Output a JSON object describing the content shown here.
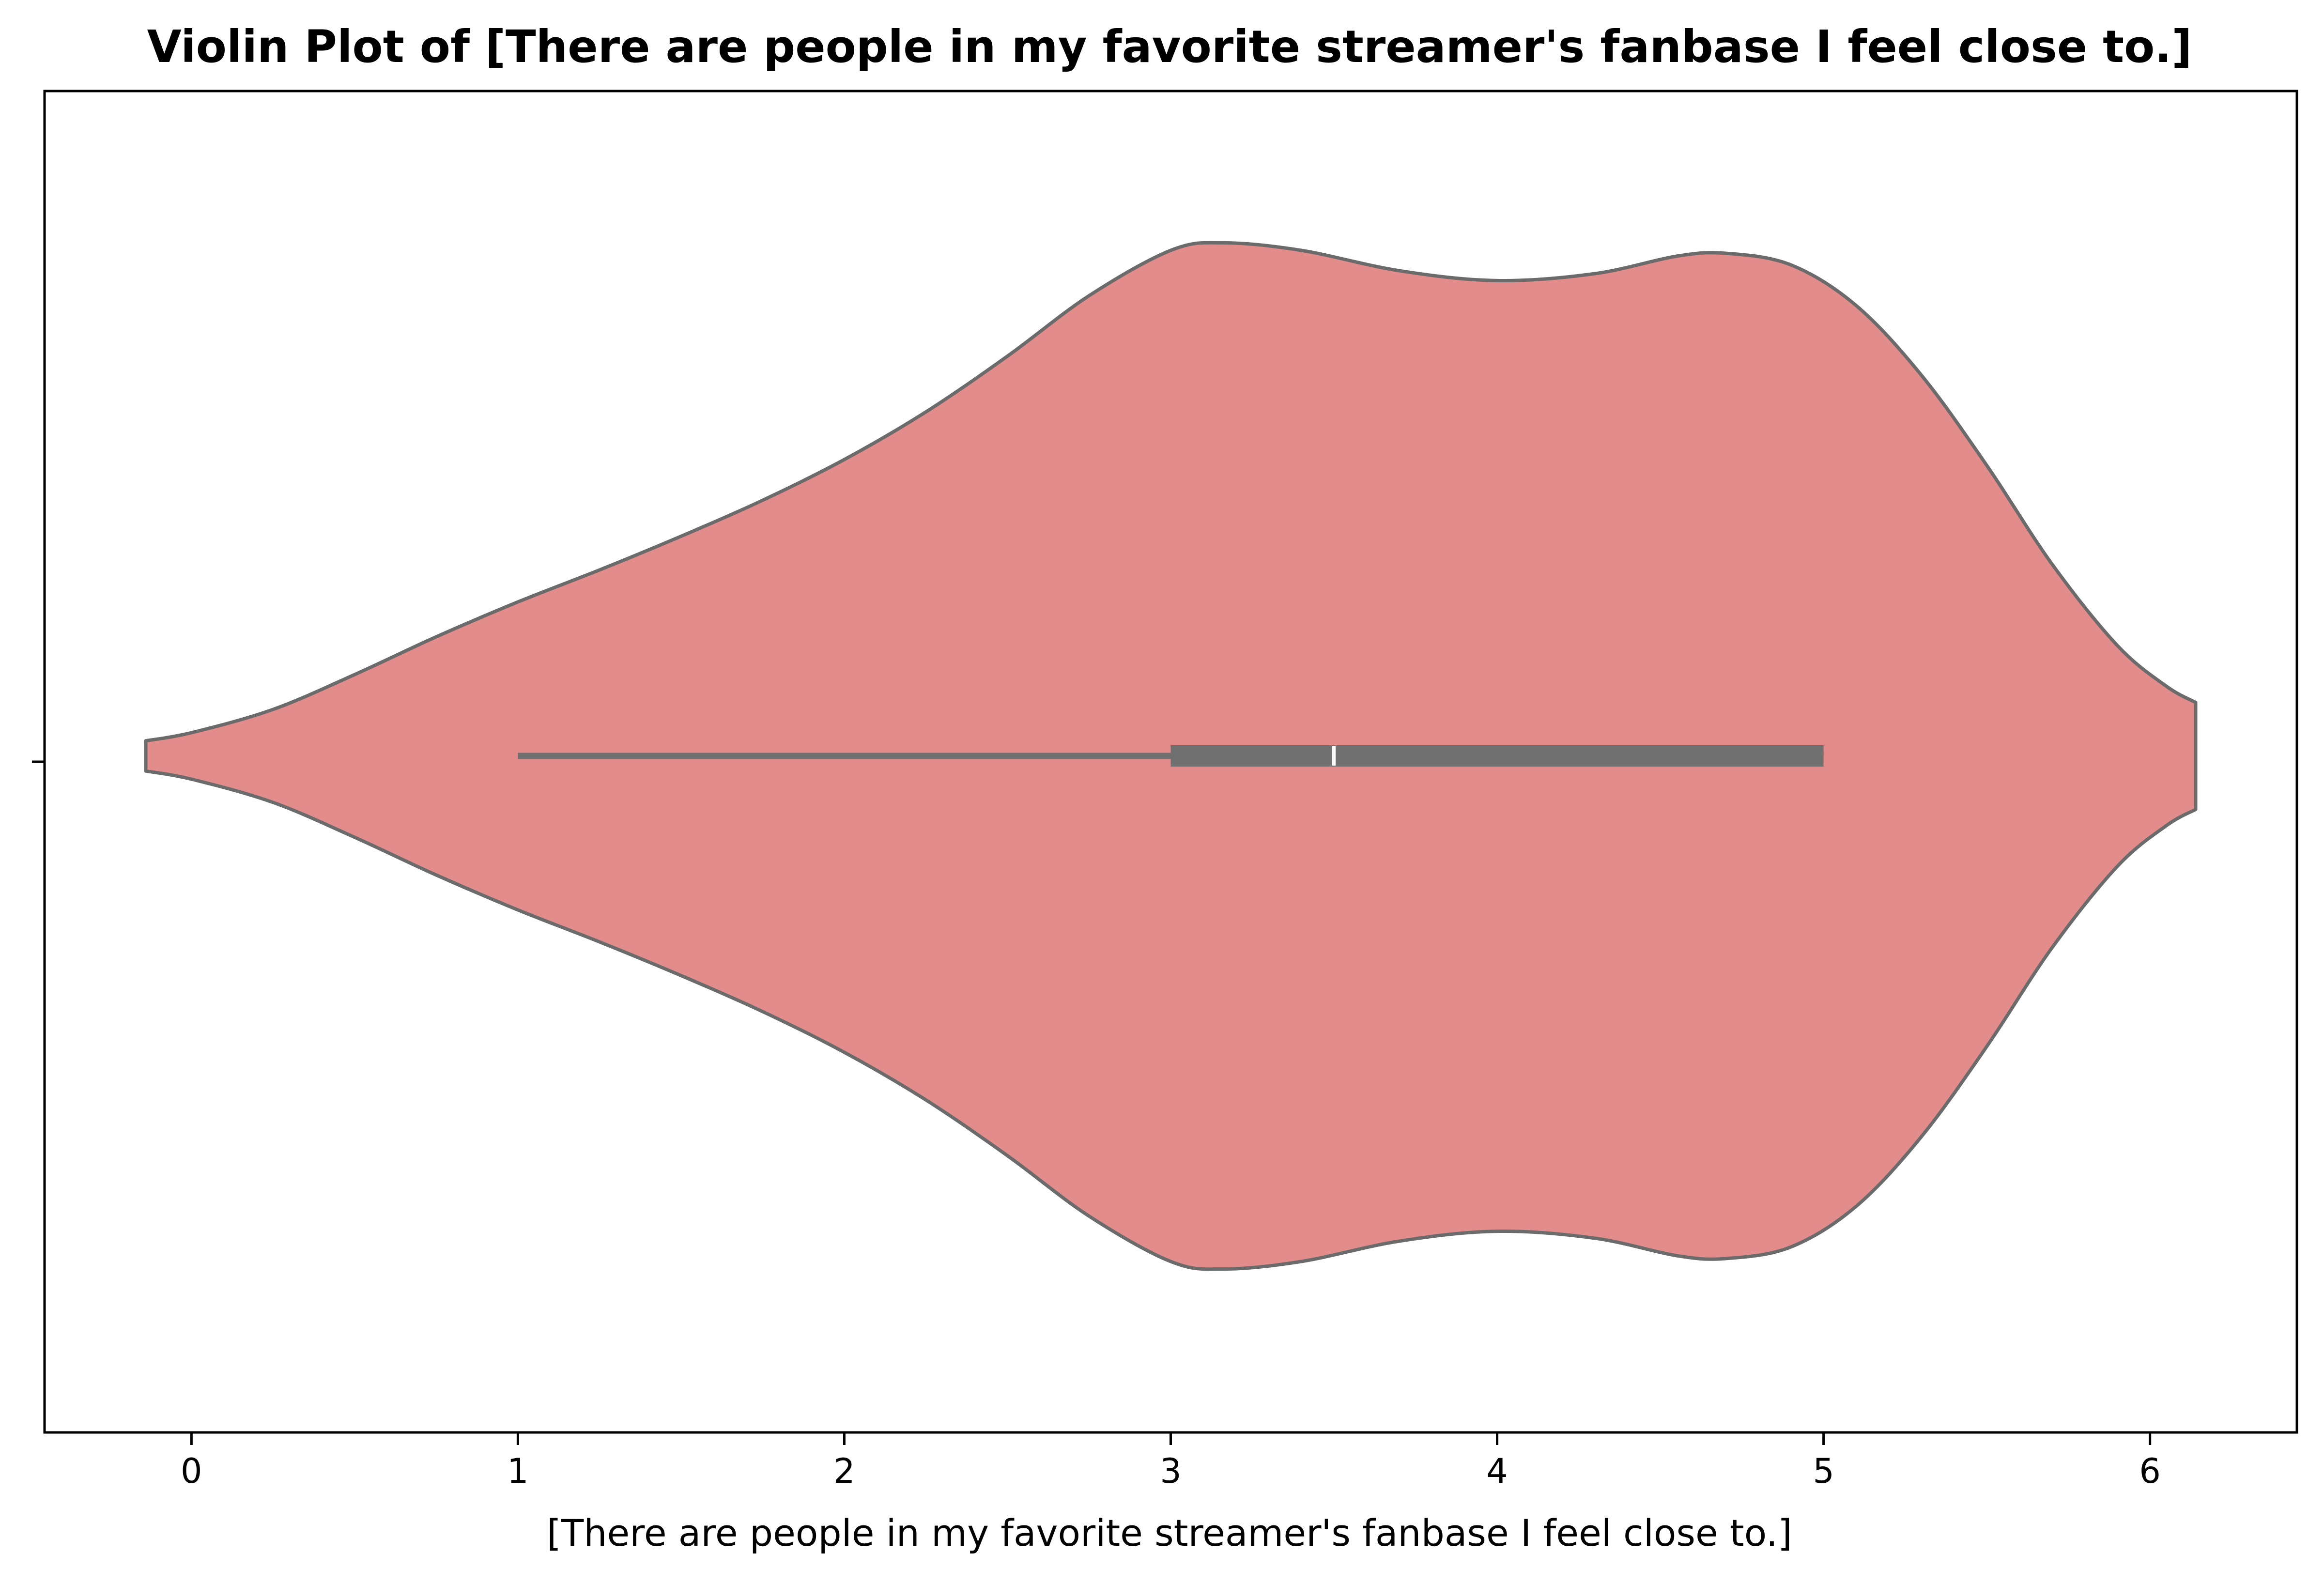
{
  "chart_data": {
    "type": "violin",
    "orientation": "horizontal",
    "title": "Violin Plot of [There are people in my favorite streamer's fanbase I feel close to.]",
    "xlabel": "[There are people in my favorite streamer's fanbase I feel close to.]",
    "ylabel": "",
    "xlim": [
      -0.45,
      6.45
    ],
    "xticks": [
      0,
      1,
      2,
      3,
      4,
      5,
      6
    ],
    "xtick_labels": [
      "0",
      "1",
      "2",
      "3",
      "4",
      "5",
      "6"
    ],
    "grid": false,
    "legend": "none",
    "colors": {
      "fill": "#e28c8c",
      "outline": "#6b6b6b",
      "box": "#707070",
      "median": "#ffffff"
    },
    "violin": {
      "min_extent": -0.14,
      "max_extent": 6.14,
      "density_profile": [
        {
          "x": -0.14,
          "w": 0.026
        },
        {
          "x": 0.0,
          "w": 0.04
        },
        {
          "x": 0.25,
          "w": 0.08
        },
        {
          "x": 0.5,
          "w": 0.14
        },
        {
          "x": 0.75,
          "w": 0.205
        },
        {
          "x": 1.0,
          "w": 0.265
        },
        {
          "x": 1.25,
          "w": 0.32
        },
        {
          "x": 1.5,
          "w": 0.378
        },
        {
          "x": 1.75,
          "w": 0.44
        },
        {
          "x": 2.0,
          "w": 0.51
        },
        {
          "x": 2.25,
          "w": 0.592
        },
        {
          "x": 2.5,
          "w": 0.688
        },
        {
          "x": 2.75,
          "w": 0.792
        },
        {
          "x": 3.0,
          "w": 0.87
        },
        {
          "x": 3.16,
          "w": 0.883
        },
        {
          "x": 3.4,
          "w": 0.87
        },
        {
          "x": 3.7,
          "w": 0.835
        },
        {
          "x": 4.0,
          "w": 0.818
        },
        {
          "x": 4.3,
          "w": 0.83
        },
        {
          "x": 4.55,
          "w": 0.86
        },
        {
          "x": 4.7,
          "w": 0.865
        },
        {
          "x": 4.9,
          "w": 0.845
        },
        {
          "x": 5.1,
          "w": 0.775
        },
        {
          "x": 5.3,
          "w": 0.655
        },
        {
          "x": 5.5,
          "w": 0.5
        },
        {
          "x": 5.7,
          "w": 0.33
        },
        {
          "x": 5.9,
          "w": 0.19
        },
        {
          "x": 6.05,
          "w": 0.12
        },
        {
          "x": 6.14,
          "w": 0.092
        }
      ]
    },
    "box": {
      "whisker_low": 1.0,
      "q1": 3.0,
      "median": 3.5,
      "q3": 5.0,
      "whisker_high": 5.0
    }
  }
}
